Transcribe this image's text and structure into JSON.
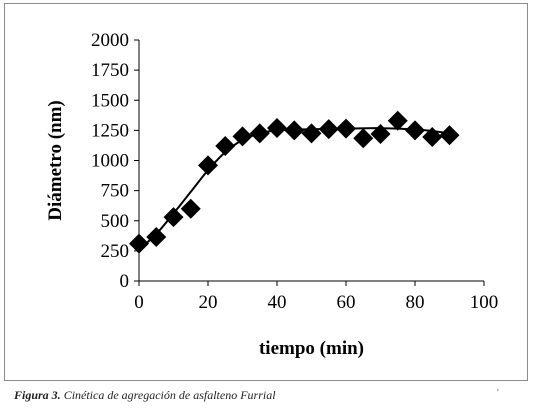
{
  "chart_data": {
    "type": "scatter",
    "xlabel": "tiempo (min)",
    "ylabel": "Diámetro (nm)",
    "xlim": [
      0,
      100
    ],
    "ylim": [
      0,
      2000
    ],
    "xticks": [
      "0",
      "20",
      "40",
      "60",
      "80",
      "100"
    ],
    "yticks": [
      "0",
      "250",
      "500",
      "750",
      "1000",
      "1250",
      "1500",
      "1750",
      "2000"
    ],
    "grid": false,
    "legend": "none",
    "marker": "diamond",
    "color": "#000000",
    "points": [
      {
        "x": 0,
        "y": 310
      },
      {
        "x": 5,
        "y": 365
      },
      {
        "x": 10,
        "y": 530
      },
      {
        "x": 15,
        "y": 600
      },
      {
        "x": 20,
        "y": 960
      },
      {
        "x": 25,
        "y": 1120
      },
      {
        "x": 30,
        "y": 1200
      },
      {
        "x": 35,
        "y": 1225
      },
      {
        "x": 40,
        "y": 1270
      },
      {
        "x": 45,
        "y": 1250
      },
      {
        "x": 50,
        "y": 1225
      },
      {
        "x": 55,
        "y": 1260
      },
      {
        "x": 60,
        "y": 1265
      },
      {
        "x": 65,
        "y": 1185
      },
      {
        "x": 70,
        "y": 1220
      },
      {
        "x": 75,
        "y": 1330
      },
      {
        "x": 80,
        "y": 1250
      },
      {
        "x": 85,
        "y": 1195
      },
      {
        "x": 90,
        "y": 1210
      }
    ],
    "trendline": [
      {
        "x": 0,
        "y": 260
      },
      {
        "x": 5,
        "y": 390
      },
      {
        "x": 10,
        "y": 560
      },
      {
        "x": 15,
        "y": 740
      },
      {
        "x": 20,
        "y": 920
      },
      {
        "x": 25,
        "y": 1070
      },
      {
        "x": 30,
        "y": 1170
      },
      {
        "x": 35,
        "y": 1225
      },
      {
        "x": 40,
        "y": 1250
      },
      {
        "x": 50,
        "y": 1260
      },
      {
        "x": 60,
        "y": 1265
      },
      {
        "x": 70,
        "y": 1268
      },
      {
        "x": 80,
        "y": 1258
      },
      {
        "x": 85,
        "y": 1245
      },
      {
        "x": 90,
        "y": 1225
      }
    ]
  },
  "caption": {
    "label": "Figura 3.",
    "text": " Cinética de agregación de asfalteno Furrial",
    "tick": "'"
  }
}
